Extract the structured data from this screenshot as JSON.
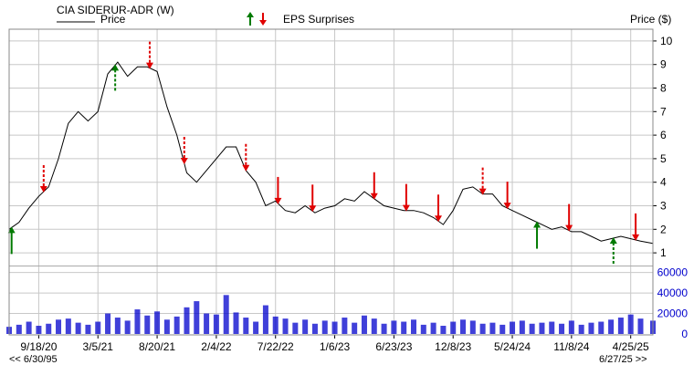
{
  "chart_data": {
    "type": "line",
    "title": "CIA SIDERUR-ADR (W)",
    "legend": {
      "price_label": "Price",
      "eps_label": "EPS Surprises",
      "placement": "top-left"
    },
    "price_axis": {
      "label": "Price ($)",
      "ylim": [
        0.5,
        10.5
      ],
      "ticks": [
        "1",
        "2",
        "3",
        "4",
        "5",
        "6",
        "7",
        "8",
        "9",
        "10"
      ]
    },
    "volume_axis": {
      "ylim": [
        0,
        65000
      ],
      "ticks": [
        "0",
        "20000",
        "40000",
        "60000"
      ]
    },
    "x_axis": {
      "ticks": [
        "9/18/20",
        "3/5/21",
        "8/20/21",
        "2/4/22",
        "7/22/22",
        "1/6/23",
        "6/23/23",
        "12/8/23",
        "5/24/24",
        "11/8/24",
        "4/25/25"
      ],
      "tick_dates": [
        "2020-09-18",
        "2021-03-05",
        "2021-08-20",
        "2022-02-04",
        "2022-07-22",
        "2023-01-06",
        "2023-06-23",
        "2023-12-08",
        "2024-05-24",
        "2024-11-08",
        "2025-04-25"
      ],
      "xlim": [
        "2020-06-26",
        "2025-06-27"
      ],
      "range_start": "<< 6/30/95",
      "range_end": "6/27/25 >>"
    },
    "grid": true,
    "price_series": {
      "name": "Price",
      "x": [
        "2020-06-26",
        "2020-07-24",
        "2020-08-21",
        "2020-09-18",
        "2020-10-16",
        "2020-11-13",
        "2020-12-11",
        "2021-01-08",
        "2021-02-05",
        "2021-03-05",
        "2021-04-02",
        "2021-04-30",
        "2021-05-28",
        "2021-06-25",
        "2021-07-23",
        "2021-08-20",
        "2021-09-17",
        "2021-10-15",
        "2021-11-12",
        "2021-12-10",
        "2022-01-07",
        "2022-02-04",
        "2022-03-04",
        "2022-04-01",
        "2022-04-29",
        "2022-05-27",
        "2022-06-24",
        "2022-07-22",
        "2022-08-19",
        "2022-09-16",
        "2022-10-14",
        "2022-11-11",
        "2022-12-09",
        "2023-01-06",
        "2023-02-03",
        "2023-03-03",
        "2023-03-31",
        "2023-04-28",
        "2023-05-26",
        "2023-06-23",
        "2023-07-21",
        "2023-08-18",
        "2023-09-15",
        "2023-10-13",
        "2023-11-10",
        "2023-12-08",
        "2024-01-05",
        "2024-02-02",
        "2024-03-01",
        "2024-03-29",
        "2024-04-26",
        "2024-05-24",
        "2024-06-21",
        "2024-07-19",
        "2024-08-16",
        "2024-09-13",
        "2024-10-11",
        "2024-11-08",
        "2024-12-06",
        "2025-01-03",
        "2025-01-31",
        "2025-02-28",
        "2025-03-28",
        "2025-04-25",
        "2025-05-23",
        "2025-06-27"
      ],
      "y": [
        2.0,
        2.3,
        2.9,
        3.4,
        3.8,
        5.0,
        6.5,
        7.0,
        6.6,
        7.0,
        8.6,
        9.1,
        8.5,
        8.9,
        8.9,
        8.7,
        7.2,
        6.0,
        4.4,
        4.0,
        4.5,
        5.0,
        5.5,
        5.5,
        4.5,
        4.0,
        3.0,
        3.2,
        2.8,
        2.7,
        3.0,
        2.7,
        2.9,
        3.0,
        3.3,
        3.2,
        3.6,
        3.3,
        3.0,
        2.9,
        2.8,
        2.8,
        2.7,
        2.5,
        2.2,
        2.8,
        3.7,
        3.8,
        3.5,
        3.5,
        3.0,
        2.8,
        2.6,
        2.4,
        2.2,
        2.0,
        2.1,
        1.9,
        1.9,
        1.7,
        1.5,
        1.6,
        1.7,
        1.6,
        1.5,
        1.4
      ]
    },
    "volume_series": {
      "name": "Volume",
      "values": [
        7000,
        9000,
        12000,
        8000,
        10000,
        14000,
        15000,
        11000,
        9000,
        12000,
        20000,
        16000,
        13000,
        24000,
        18000,
        22000,
        14000,
        17000,
        26000,
        32000,
        20000,
        19000,
        38000,
        21000,
        16000,
        12000,
        28000,
        17000,
        15000,
        11000,
        14000,
        10000,
        13000,
        12000,
        16000,
        11000,
        18000,
        15000,
        10000,
        13000,
        12000,
        14000,
        9000,
        11000,
        8000,
        12000,
        14000,
        13000,
        10000,
        11000,
        9000,
        12000,
        13000,
        10000,
        11000,
        12000,
        10000,
        13000,
        9000,
        11000,
        12000,
        14000,
        16000,
        19000,
        15000,
        13000
      ]
    },
    "eps_surprises": [
      {
        "date": "2020-07-03",
        "direction": "up",
        "style": "solid"
      },
      {
        "date": "2020-10-02",
        "direction": "down",
        "style": "dashed"
      },
      {
        "date": "2021-04-23",
        "direction": "up",
        "style": "dashed"
      },
      {
        "date": "2021-07-30",
        "direction": "down",
        "style": "dashed"
      },
      {
        "date": "2021-11-05",
        "direction": "down",
        "style": "dashed"
      },
      {
        "date": "2022-04-29",
        "direction": "down",
        "style": "dashed"
      },
      {
        "date": "2022-07-29",
        "direction": "down",
        "style": "solid"
      },
      {
        "date": "2022-11-04",
        "direction": "down",
        "style": "solid"
      },
      {
        "date": "2023-04-28",
        "direction": "down",
        "style": "solid"
      },
      {
        "date": "2023-07-28",
        "direction": "down",
        "style": "solid"
      },
      {
        "date": "2023-10-27",
        "direction": "down",
        "style": "solid"
      },
      {
        "date": "2024-03-01",
        "direction": "down",
        "style": "dashed"
      },
      {
        "date": "2024-05-10",
        "direction": "down",
        "style": "solid"
      },
      {
        "date": "2024-08-02",
        "direction": "up",
        "style": "solid"
      },
      {
        "date": "2024-11-01",
        "direction": "down",
        "style": "solid"
      },
      {
        "date": "2025-03-07",
        "direction": "up",
        "style": "dashed"
      },
      {
        "date": "2025-05-09",
        "direction": "down",
        "style": "solid"
      }
    ],
    "colors": {
      "price_line": "#000000",
      "volume_bar": "#0000cc",
      "grid": "#c8c8c8",
      "up_arrow": "#007a00",
      "down_arrow": "#e00000",
      "frame": "#888888"
    }
  }
}
